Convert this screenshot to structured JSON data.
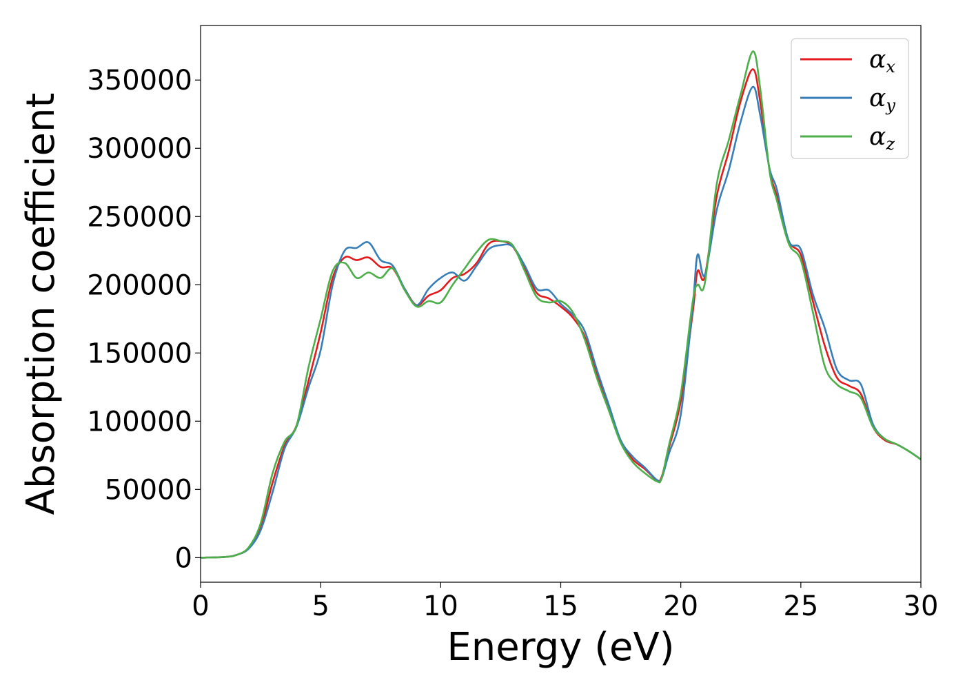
{
  "chart_data": {
    "type": "line",
    "title": "",
    "xlabel": "Energy (eV)",
    "ylabel": "Absorption coefficient",
    "xlim": [
      0,
      30
    ],
    "ylim": [
      -18000,
      390000
    ],
    "xticks": [
      0,
      5,
      10,
      15,
      20,
      25,
      30
    ],
    "yticks": [
      0,
      50000,
      100000,
      150000,
      200000,
      250000,
      300000,
      350000
    ],
    "grid": false,
    "legend_position": "top-right",
    "series": [
      {
        "name": "α",
        "subscript": "x",
        "color": "#e41a1c",
        "points": [
          [
            0,
            0
          ],
          [
            1,
            500
          ],
          [
            1.5,
            2000
          ],
          [
            2,
            7000
          ],
          [
            2.5,
            22000
          ],
          [
            3,
            55000
          ],
          [
            3.5,
            82000
          ],
          [
            4,
            97000
          ],
          [
            4.5,
            130000
          ],
          [
            5,
            165000
          ],
          [
            5.5,
            205000
          ],
          [
            6,
            220000
          ],
          [
            6.5,
            218000
          ],
          [
            7,
            220000
          ],
          [
            7.5,
            213000
          ],
          [
            8,
            212000
          ],
          [
            8.5,
            197000
          ],
          [
            9,
            185000
          ],
          [
            9.5,
            192000
          ],
          [
            10,
            196000
          ],
          [
            10.5,
            205000
          ],
          [
            11,
            208000
          ],
          [
            11.5,
            216000
          ],
          [
            12,
            230000
          ],
          [
            12.5,
            232000
          ],
          [
            13,
            228000
          ],
          [
            13.5,
            212000
          ],
          [
            14,
            194000
          ],
          [
            14.5,
            190000
          ],
          [
            15,
            184000
          ],
          [
            15.5,
            176000
          ],
          [
            16,
            162000
          ],
          [
            16.5,
            135000
          ],
          [
            17,
            110000
          ],
          [
            17.5,
            85000
          ],
          [
            18,
            72000
          ],
          [
            18.5,
            65000
          ],
          [
            19,
            57000
          ],
          [
            19.2,
            59000
          ],
          [
            19.5,
            80000
          ],
          [
            20,
            115000
          ],
          [
            20.5,
            180000
          ],
          [
            20.7,
            210000
          ],
          [
            21,
            206000
          ],
          [
            21.5,
            265000
          ],
          [
            22,
            298000
          ],
          [
            22.5,
            335000
          ],
          [
            23,
            358000
          ],
          [
            23.3,
            335000
          ],
          [
            23.7,
            284000
          ],
          [
            24,
            265000
          ],
          [
            24.5,
            232000
          ],
          [
            25,
            222000
          ],
          [
            25.5,
            188000
          ],
          [
            26,
            155000
          ],
          [
            26.5,
            132000
          ],
          [
            27,
            126000
          ],
          [
            27.5,
            120000
          ],
          [
            28,
            96000
          ],
          [
            28.5,
            86000
          ],
          [
            29,
            83000
          ],
          [
            29.5,
            78000
          ],
          [
            30,
            72000
          ]
        ]
      },
      {
        "name": "α",
        "subscript": "y",
        "color": "#377eb8",
        "points": [
          [
            0,
            0
          ],
          [
            1,
            500
          ],
          [
            1.5,
            2000
          ],
          [
            2,
            6500
          ],
          [
            2.5,
            20000
          ],
          [
            3,
            48000
          ],
          [
            3.5,
            80000
          ],
          [
            4,
            96000
          ],
          [
            4.5,
            125000
          ],
          [
            5,
            152000
          ],
          [
            5.5,
            200000
          ],
          [
            6,
            225000
          ],
          [
            6.5,
            227000
          ],
          [
            7,
            231000
          ],
          [
            7.5,
            218000
          ],
          [
            8,
            214000
          ],
          [
            8.5,
            197000
          ],
          [
            9,
            185000
          ],
          [
            9.5,
            197000
          ],
          [
            10,
            205000
          ],
          [
            10.5,
            209000
          ],
          [
            11,
            203000
          ],
          [
            11.5,
            214000
          ],
          [
            12,
            226000
          ],
          [
            12.5,
            229000
          ],
          [
            13,
            228000
          ],
          [
            13.5,
            214000
          ],
          [
            14,
            197000
          ],
          [
            14.5,
            196000
          ],
          [
            15,
            186000
          ],
          [
            15.5,
            178000
          ],
          [
            16,
            166000
          ],
          [
            16.5,
            138000
          ],
          [
            17,
            112000
          ],
          [
            17.5,
            86000
          ],
          [
            18,
            74000
          ],
          [
            18.5,
            66000
          ],
          [
            19,
            57000
          ],
          [
            19.2,
            58000
          ],
          [
            19.5,
            76000
          ],
          [
            20,
            105000
          ],
          [
            20.5,
            185000
          ],
          [
            20.7,
            222000
          ],
          [
            21,
            207000
          ],
          [
            21.5,
            255000
          ],
          [
            22,
            284000
          ],
          [
            22.5,
            320000
          ],
          [
            23,
            345000
          ],
          [
            23.3,
            325000
          ],
          [
            23.7,
            285000
          ],
          [
            24,
            270000
          ],
          [
            24.5,
            232000
          ],
          [
            25,
            226000
          ],
          [
            25.5,
            193000
          ],
          [
            26,
            168000
          ],
          [
            26.5,
            138000
          ],
          [
            27,
            130000
          ],
          [
            27.5,
            127000
          ],
          [
            28,
            98000
          ],
          [
            28.5,
            87000
          ],
          [
            29,
            83000
          ],
          [
            29.5,
            78000
          ],
          [
            30,
            72000
          ]
        ]
      },
      {
        "name": "α",
        "subscript": "z",
        "color": "#4daf4a",
        "points": [
          [
            0,
            0
          ],
          [
            1,
            500
          ],
          [
            1.5,
            2000
          ],
          [
            2,
            7500
          ],
          [
            2.5,
            25000
          ],
          [
            3,
            62000
          ],
          [
            3.5,
            85000
          ],
          [
            4,
            97000
          ],
          [
            4.5,
            140000
          ],
          [
            5,
            175000
          ],
          [
            5.5,
            210000
          ],
          [
            6,
            216000
          ],
          [
            6.5,
            205000
          ],
          [
            7,
            209000
          ],
          [
            7.5,
            205000
          ],
          [
            8,
            212000
          ],
          [
            8.5,
            196000
          ],
          [
            9,
            184000
          ],
          [
            9.5,
            188000
          ],
          [
            10,
            187000
          ],
          [
            10.5,
            200000
          ],
          [
            11,
            212000
          ],
          [
            11.5,
            224000
          ],
          [
            12,
            233000
          ],
          [
            12.5,
            232000
          ],
          [
            13,
            229000
          ],
          [
            13.5,
            210000
          ],
          [
            14,
            191000
          ],
          [
            14.5,
            187000
          ],
          [
            15,
            188000
          ],
          [
            15.5,
            180000
          ],
          [
            16,
            160000
          ],
          [
            16.5,
            132000
          ],
          [
            17,
            108000
          ],
          [
            17.5,
            84000
          ],
          [
            18,
            70000
          ],
          [
            18.5,
            62000
          ],
          [
            19,
            56000
          ],
          [
            19.2,
            58000
          ],
          [
            19.5,
            82000
          ],
          [
            20,
            120000
          ],
          [
            20.5,
            188000
          ],
          [
            20.7,
            200000
          ],
          [
            21,
            201000
          ],
          [
            21.5,
            274000
          ],
          [
            22,
            306000
          ],
          [
            22.5,
            340000
          ],
          [
            23,
            371000
          ],
          [
            23.3,
            345000
          ],
          [
            23.7,
            283000
          ],
          [
            24,
            262000
          ],
          [
            24.5,
            230000
          ],
          [
            25,
            218000
          ],
          [
            25.5,
            180000
          ],
          [
            26,
            140000
          ],
          [
            26.5,
            127000
          ],
          [
            27,
            122000
          ],
          [
            27.5,
            117000
          ],
          [
            28,
            96000
          ],
          [
            28.5,
            87000
          ],
          [
            29,
            83000
          ],
          [
            29.5,
            78000
          ],
          [
            30,
            72000
          ]
        ]
      }
    ]
  }
}
